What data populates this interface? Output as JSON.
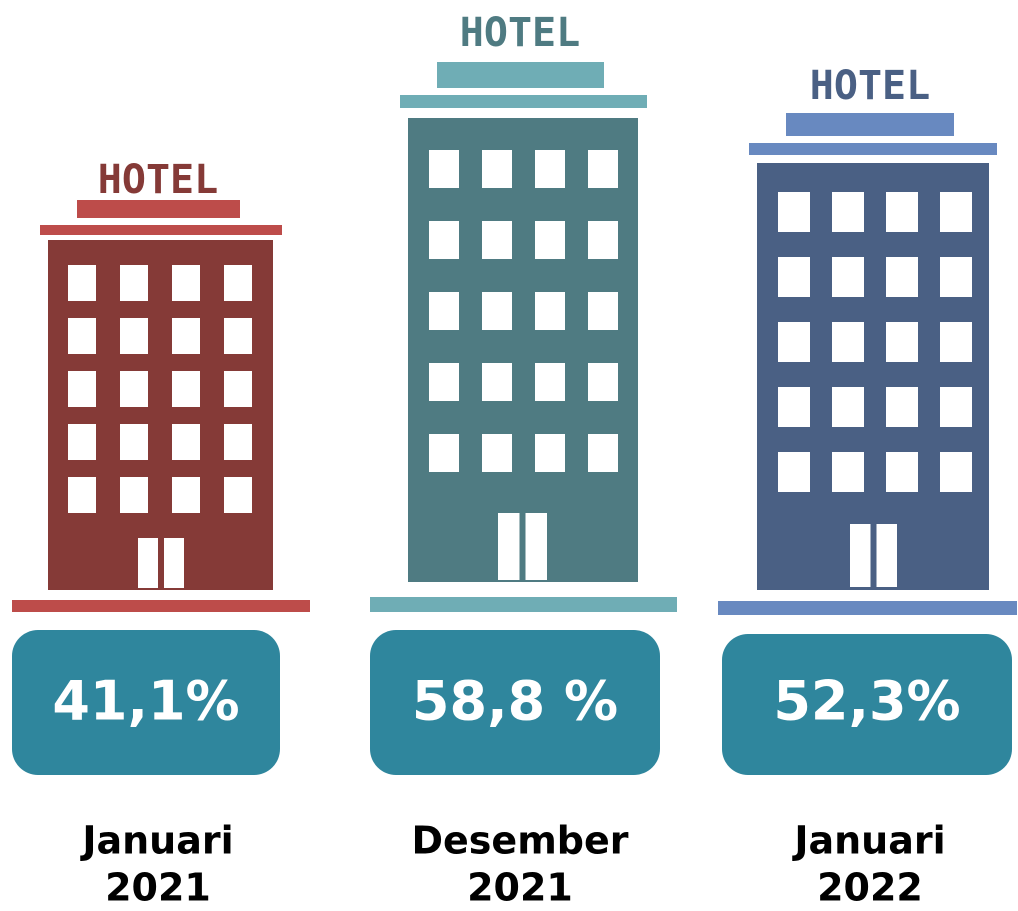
{
  "items": [
    {
      "sign": "HOTEL",
      "value": "41,1%",
      "month": "Januari",
      "year": "2021",
      "color": "#853a37",
      "accent": "#bd4c4a"
    },
    {
      "sign": "HOTEL",
      "value": "58,8 %",
      "month": "Desember",
      "year": "2021",
      "color": "#4f7b82",
      "accent": "#6fadb5"
    },
    {
      "sign": "HOTEL",
      "value": "52,3%",
      "month": "Januari",
      "year": "2022",
      "color": "#4a6084",
      "accent": "#6889c0"
    }
  ]
}
